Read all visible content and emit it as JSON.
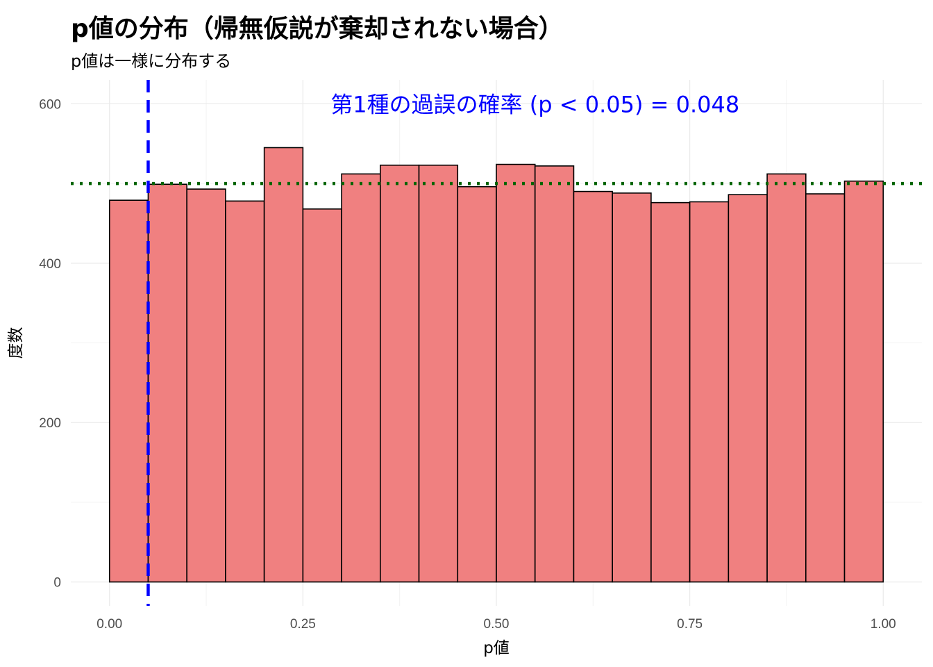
{
  "title": "p値の分布（帰無仮説が棄却されない場合）",
  "subtitle": "p値は一様に分布する",
  "chart_data": {
    "type": "bar",
    "xlabel": "p値",
    "ylabel": "度数",
    "bin_width": 0.05,
    "bin_starts": [
      0.0,
      0.05,
      0.1,
      0.15,
      0.2,
      0.25,
      0.3,
      0.35,
      0.4,
      0.45,
      0.5,
      0.55,
      0.6,
      0.65,
      0.7,
      0.75,
      0.8,
      0.85,
      0.9,
      0.95
    ],
    "values": [
      479,
      499,
      493,
      478,
      545,
      468,
      512,
      523,
      523,
      496,
      524,
      522,
      490,
      488,
      476,
      477,
      486,
      512,
      487,
      503
    ],
    "xlim": [
      -0.05,
      1.05
    ],
    "ylim": [
      -30,
      630
    ],
    "x_ticks": [
      0.0,
      0.25,
      0.5,
      0.75,
      1.0
    ],
    "x_tick_labels": [
      "0.00",
      "0.25",
      "0.50",
      "0.75",
      "1.00"
    ],
    "y_ticks": [
      0,
      200,
      400,
      600
    ],
    "y_tick_labels": [
      "0",
      "200",
      "400",
      "600"
    ],
    "grid": true,
    "bar_fill": "#F08080",
    "bar_stroke": "#000000",
    "reference_lines": [
      {
        "orientation": "vertical",
        "value": 0.05,
        "style": "dashed",
        "color": "#0000FF"
      },
      {
        "orientation": "horizontal",
        "value": 500,
        "style": "dotted",
        "color": "#006400"
      }
    ],
    "annotation": {
      "text": "第1種の過誤の確率 (p < 0.05) = 0.048",
      "color": "#0000FF",
      "x": 0.55,
      "y": 600
    }
  }
}
